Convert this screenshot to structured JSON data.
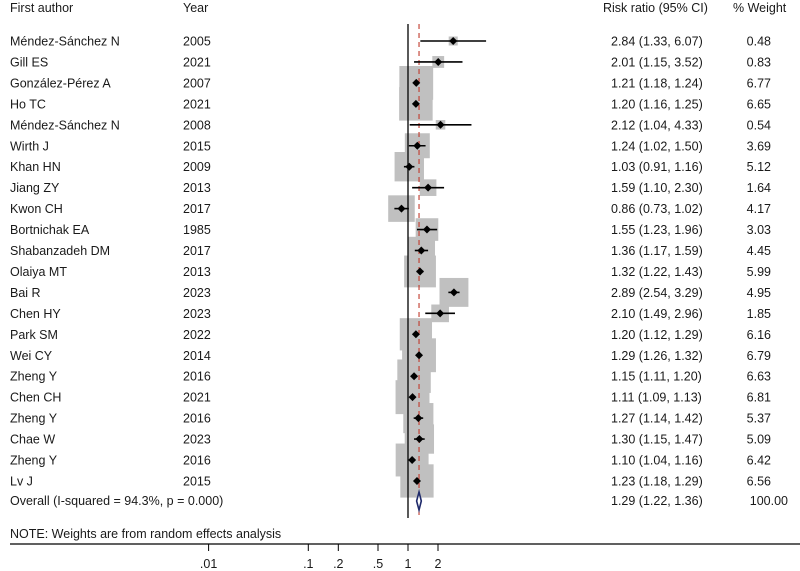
{
  "chart_data": {
    "type": "forest",
    "x_scale": "log",
    "headers": {
      "author": "First  author",
      "year": "Year",
      "ci": "Risk  ratio (95% CI)",
      "weight": "% Weight"
    },
    "studies": [
      {
        "author": "Méndez-Sánchez N",
        "year": "2005",
        "rr": 2.84,
        "lo": 1.33,
        "hi": 6.07,
        "ci_text": "2.84 (1.33, 6.07)",
        "weight": 0.48,
        "weight_text": "0.48"
      },
      {
        "author": "Gill ES",
        "year": "2021",
        "rr": 2.01,
        "lo": 1.15,
        "hi": 3.52,
        "ci_text": "2.01 (1.15, 3.52)",
        "weight": 0.83,
        "weight_text": "0.83"
      },
      {
        "author": "González-Pérez A",
        "year": "2007",
        "rr": 1.21,
        "lo": 1.18,
        "hi": 1.24,
        "ci_text": "1.21 (1.18, 1.24)",
        "weight": 6.77,
        "weight_text": "6.77"
      },
      {
        "author": "Ho TC",
        "year": "2021",
        "rr": 1.2,
        "lo": 1.16,
        "hi": 1.25,
        "ci_text": "1.20 (1.16, 1.25)",
        "weight": 6.65,
        "weight_text": "6.65"
      },
      {
        "author": "Méndez-Sánchez N",
        "year": "2008",
        "rr": 2.12,
        "lo": 1.04,
        "hi": 4.33,
        "ci_text": "2.12 (1.04, 4.33)",
        "weight": 0.54,
        "weight_text": "0.54"
      },
      {
        "author": "Wirth J",
        "year": "2015",
        "rr": 1.24,
        "lo": 1.02,
        "hi": 1.5,
        "ci_text": "1.24 (1.02, 1.50)",
        "weight": 3.69,
        "weight_text": "3.69"
      },
      {
        "author": "Khan HN",
        "year": "2009",
        "rr": 1.03,
        "lo": 0.91,
        "hi": 1.16,
        "ci_text": "1.03 (0.91, 1.16)",
        "weight": 5.12,
        "weight_text": "5.12"
      },
      {
        "author": "Jiang ZY",
        "year": "2013",
        "rr": 1.59,
        "lo": 1.1,
        "hi": 2.3,
        "ci_text": "1.59 (1.10, 2.30)",
        "weight": 1.64,
        "weight_text": "1.64"
      },
      {
        "author": "Kwon CH",
        "year": "2017",
        "rr": 0.86,
        "lo": 0.73,
        "hi": 1.02,
        "ci_text": "0.86 (0.73, 1.02)",
        "weight": 4.17,
        "weight_text": "4.17"
      },
      {
        "author": "Bortnichak EA",
        "year": "1985",
        "rr": 1.55,
        "lo": 1.23,
        "hi": 1.96,
        "ci_text": "1.55 (1.23, 1.96)",
        "weight": 3.03,
        "weight_text": "3.03"
      },
      {
        "author": "Shabanzadeh DM",
        "year": "2017",
        "rr": 1.36,
        "lo": 1.17,
        "hi": 1.59,
        "ci_text": "1.36 (1.17, 1.59)",
        "weight": 4.45,
        "weight_text": "4.45"
      },
      {
        "author": "Olaiya MT",
        "year": "2013",
        "rr": 1.32,
        "lo": 1.22,
        "hi": 1.43,
        "ci_text": "1.32 (1.22, 1.43)",
        "weight": 5.99,
        "weight_text": "5.99"
      },
      {
        "author": "Bai R",
        "year": "2023",
        "rr": 2.89,
        "lo": 2.54,
        "hi": 3.29,
        "ci_text": "2.89 (2.54, 3.29)",
        "weight": 4.95,
        "weight_text": "4.95"
      },
      {
        "author": "Chen HY",
        "year": "2023",
        "rr": 2.1,
        "lo": 1.49,
        "hi": 2.96,
        "ci_text": "2.10 (1.49, 2.96)",
        "weight": 1.85,
        "weight_text": "1.85"
      },
      {
        "author": "Park SM",
        "year": "2022",
        "rr": 1.2,
        "lo": 1.12,
        "hi": 1.29,
        "ci_text": "1.20 (1.12, 1.29)",
        "weight": 6.16,
        "weight_text": "6.16"
      },
      {
        "author": "Wei CY",
        "year": "2014",
        "rr": 1.29,
        "lo": 1.26,
        "hi": 1.32,
        "ci_text": "1.29 (1.26, 1.32)",
        "weight": 6.79,
        "weight_text": "6.79"
      },
      {
        "author": "Zheng Y",
        "year": "2016",
        "rr": 1.15,
        "lo": 1.11,
        "hi": 1.2,
        "ci_text": "1.15 (1.11, 1.20)",
        "weight": 6.63,
        "weight_text": "6.63"
      },
      {
        "author": "Chen CH",
        "year": "2021",
        "rr": 1.11,
        "lo": 1.09,
        "hi": 1.13,
        "ci_text": "1.11 (1.09, 1.13)",
        "weight": 6.81,
        "weight_text": "6.81"
      },
      {
        "author": "Zheng Y",
        "year": "2016",
        "rr": 1.27,
        "lo": 1.14,
        "hi": 1.42,
        "ci_text": "1.27 (1.14, 1.42)",
        "weight": 5.37,
        "weight_text": "5.37"
      },
      {
        "author": "Chae W",
        "year": "2023",
        "rr": 1.3,
        "lo": 1.15,
        "hi": 1.47,
        "ci_text": "1.30 (1.15, 1.47)",
        "weight": 5.09,
        "weight_text": "5.09"
      },
      {
        "author": "Zheng Y",
        "year": "2016",
        "rr": 1.1,
        "lo": 1.04,
        "hi": 1.16,
        "ci_text": "1.10 (1.04, 1.16)",
        "weight": 6.42,
        "weight_text": "6.42"
      },
      {
        "author": "Lv J",
        "year": "2015",
        "rr": 1.23,
        "lo": 1.18,
        "hi": 1.29,
        "ci_text": "1.23 (1.18, 1.29)",
        "weight": 6.56,
        "weight_text": "6.56"
      }
    ],
    "overall": {
      "label": "Overall  (I-squared = 94.3%, p = 0.000)",
      "rr": 1.29,
      "lo": 1.22,
      "hi": 1.36,
      "ci_text": "1.29 (1.22, 1.36)",
      "weight_text": "100.00"
    },
    "note": "NOTE: Weights are from random effects analysis",
    "x_ticks": [
      {
        "value": 0.01,
        "label": ".01"
      },
      {
        "value": 0.1,
        "label": ".1"
      },
      {
        "value": 0.2,
        "label": ".2"
      },
      {
        "value": 0.5,
        "label": ".5"
      },
      {
        "value": 1,
        "label": "1"
      },
      {
        "value": 2,
        "label": "2"
      }
    ],
    "null_line": 1,
    "colors": {
      "weight_box": "#c0c0c0",
      "ci_line": "#000000",
      "point": "#000000",
      "overall_line": "#c0392b",
      "overall_diamond": "#1f2a6b"
    }
  }
}
